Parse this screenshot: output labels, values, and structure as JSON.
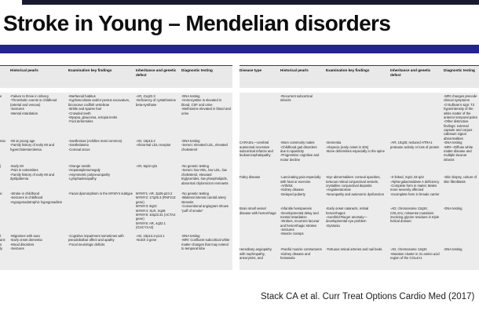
{
  "title": "Stroke in Young – Mendelian disorders",
  "citation": "Stack CA et al. Curr Treat Options Cardio Med (2017)",
  "colors": {
    "top_bar": "#191932",
    "accent_bar": "#232394",
    "table_background": "#ececec"
  },
  "left_table": {
    "headers": {
      "historical": "Historical pearls",
      "examination": "Examination key findings",
      "inheritance": "Inheritance and genetic defect",
      "diagnostic": "Diagnostic testing"
    },
    "rows": [
      {
        "frag": "e",
        "hist": "-Failure to thrive in infancy\n-Thrombotic events in childhood (arterial and venous)\n-Seizures\n-Mental retardation",
        "exam": "-Marfanoid habitus\n-Kyphoscoliosis and/or pectus excavatum, biconcave codfish vertebrae\n-Brittle and sparse hair\n-Crowded teeth\n-Myopia, glaucoma, ectopia lentis\n-Foot deformities",
        "inher": "-AR, 21q22.3\n-Deficiency of cystathionine beta-synthase",
        "diag": "-DNA testing\n-Homocystine is elevated in blood, CSF and urine\n-Methionine elevated in blood and urine"
      },
      {
        "frag": "mia",
        "hist": "-MI at young age\n-Family history of early MI and hypercholesterolemia",
        "exam": "-Xanthomas (Achilles most common)\n-Xanthelasma\n-Corneal arcus",
        "inher": "-AD, 19p13.2\n-Abnormal LDL receptor",
        "diag": "-DNA testing\n-Serum: elevated LDL, elevated cholesterol"
      },
      {
        "frag": ")",
        "hist": "-Early MI\n-Pain in extremities\n-Family history of early MI and dyslipidemia",
        "exam": "-Orange tonsils\n-Hepatosplenomegaly\n-Asymmetric polyneuropathy\n-Lymphadenopathy",
        "inher": "-AR, 9q22-q31",
        "diag": "-No genetic testing\n-Serum: low HDL, low LDL, low cholesterol, elevated triglycerides, low phospholipids, abnormal chylomicron remnants"
      },
      {
        "frag": "e:",
        "hist": "-Stroke in childhood\n-Seizures in childhood\n-Hypogonadotrophic hypogonadism",
        "exam": "-Facial dysmorphism in the MYMY4 subtype",
        "inher": "MYMY1: AR, 3p26-p24.2\nMYMY2: 17q25.3 (RNF213 gene)\nMYMY3: 8q23\nMYMY4: XLR, Xq28\nMYMY5: 10q23.31 (ACTA2 gene)\nMYMY6: AR, 4q32.1 (GUCY1A3)",
        "diag": "-No genetic testing\n-Bilateral internal carotid artery stenosis\n-Conventional angiogram shows “puff of smoke”"
      },
      {
        "frag": "l.\nant:\ns\nly",
        "hist": "-Migraines with aura\n-Early onset dementia\n-Mood disorders\n-Seizures",
        "exam": "-Cognitive impairment sometimes with pseudobulbar affect and apathy\n-Focal neurologic deficits",
        "inher": "-AD, 19p13.2-p13.1\n-Notch 3 gene",
        "diag": "-DNA testing\n-MRI: Confluent subcortical white matter changes that may extend to temporal lobe"
      }
    ]
  },
  "right_table": {
    "headers": {
      "disease": "Disease type",
      "historical": "Historical pearls",
      "examination": "Examination key findings",
      "inheritance": "Inheritance and genetic defect",
      "diagnostic": "Diagnostic testing"
    },
    "rows": [
      {
        "disease": "",
        "hist": "-Recurrent subcortical infarcts",
        "exam": "",
        "inher": "",
        "diag": "-MRI changes precede clinical symptoms\n-O’Sullivan’s sign: T2 hyperintensity of the white matter of the anterior temporal poles\n-Other distinctive findings: external capsule and corpus callosum signal abnormalities"
      },
      {
        "disease": "CARASIL—cerebral autosomal recessive subcortical infarcts and leukoencephalopathy",
        "hist": "-More commonly males\n-Childhood gait disorders due to spasticity\n-Progressive cognitive and motor decline",
        "exam": "-Dementia\n-Alopecia (early onset in 20s)\n-Bone deformities especially in the spine",
        "inher": "-AR; 10q25; reduced HTRA1 protease activity or loss of protein",
        "diag": "-DNA testing\n-MRI—Diffuse white matter disease and multiple lacunar infarcts"
      },
      {
        "disease": "Fabry disease",
        "hist": "-Lancinating pain especially with heat or exercise\n-Arthritis\n-Kidney disease\n-Delayed puberty",
        "exam": "-Eye abnormalities: corneal opacities, tortuous retinal conjunctival vessels, crystalline conjunctival deposits\n-Angiokeratomas\n-Neuropathy and autonomic dysfunction",
        "inher": "-X-linked, Xq21.33-q22\n-Alpha-galactosidase A deficiency\n-Complete form in males; Males more severely affected\n-Incomplete form in female carrier",
        "diag": "-Skin biopsy, culture of skin fibroblasts"
      },
      {
        "disease": "Brain small vessel disease with hemorrhage",
        "hist": "-Infantile hemiparesis\n-Developmental delay and mental retardation\n-Strokes, recurrent lacunar and hemorrhagic strokes\n-Seizures\n-Muscle cramps",
        "exam": "-Early onset cataracts, retinal hemorrhages\n-Axenfeld-Rieger anomaly—developmental eye problem\n-Dystonia",
        "inher": "-AD; chromosome 13q34; COL4A1; missense mutations involving glycine residues in triple helical domain",
        "diag": "-DNA testing"
      },
      {
        "disease": "Hereditary angiopathy with nephropathy, aneurysms, and",
        "hist": "-Painful muscle contractures\n-Kidney disease and hematuria",
        "exam": "-Tortuous retinal arteries and nail beds.",
        "inher": "-AD, chromosome 13q34\n-Mutation cluster in 31 amino acid region of the COL4A1",
        "diag": "-DNA testing"
      }
    ]
  }
}
